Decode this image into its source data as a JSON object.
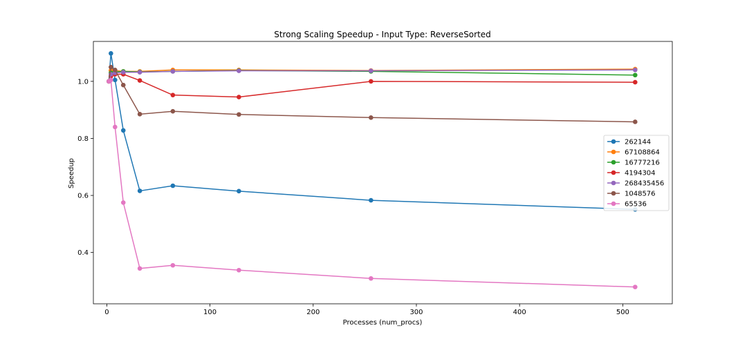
{
  "chart_data": {
    "type": "line",
    "title": "Strong Scaling Speedup - Input Type: ReverseSorted",
    "xlabel": "Processes (num_procs)",
    "ylabel": "Speedup",
    "xlim": [
      -13,
      548
    ],
    "ylim": [
      0.22,
      1.14
    ],
    "xticks": [
      0,
      100,
      200,
      300,
      400,
      500
    ],
    "yticks": [
      0.4,
      0.6,
      0.8,
      1.0
    ],
    "ytick_labels": [
      "0.4",
      "0.6",
      "0.8",
      "1.0"
    ],
    "grid": false,
    "legend_position": "center-right",
    "x": [
      2,
      4,
      8,
      16,
      32,
      64,
      128,
      256,
      512
    ],
    "series": [
      {
        "name": "262144",
        "color": "#1f77b4",
        "values": [
          1.0,
          1.098,
          1.005,
          0.828,
          0.616,
          0.634,
          0.615,
          0.583,
          0.551
        ]
      },
      {
        "name": "67108864",
        "color": "#ff7f0e",
        "values": [
          1.0,
          1.038,
          1.038,
          1.035,
          1.035,
          1.04,
          1.04,
          1.038,
          1.043
        ]
      },
      {
        "name": "16777216",
        "color": "#2ca02c",
        "values": [
          1.0,
          1.03,
          1.033,
          1.035,
          1.033,
          1.035,
          1.038,
          1.035,
          1.022
        ]
      },
      {
        "name": "4194304",
        "color": "#d62728",
        "values": [
          1.0,
          1.018,
          1.025,
          1.025,
          1.003,
          0.952,
          0.945,
          1.0,
          0.997
        ]
      },
      {
        "name": "268435456",
        "color": "#9467bd",
        "values": [
          1.0,
          1.025,
          1.03,
          1.032,
          1.032,
          1.035,
          1.037,
          1.037,
          1.04
        ]
      },
      {
        "name": "1048576",
        "color": "#8c564b",
        "values": [
          1.0,
          1.05,
          1.04,
          0.987,
          0.885,
          0.895,
          0.884,
          0.873,
          0.858
        ]
      },
      {
        "name": "65536",
        "color": "#e377c2",
        "values": [
          1.0,
          1.005,
          0.84,
          0.575,
          0.344,
          0.355,
          0.338,
          0.309,
          0.279
        ]
      }
    ]
  }
}
